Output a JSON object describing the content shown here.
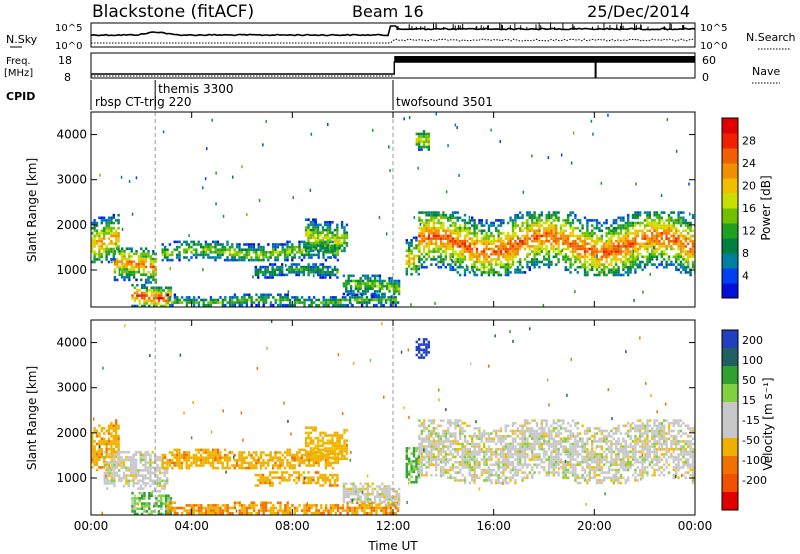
{
  "header": {
    "station": "Blackstone (fitACF)",
    "beam": "Beam 16",
    "date": "25/Dec/2014"
  },
  "top_panels": {
    "nsky_label": "N.Sky",
    "nsearch_label": "N.Search",
    "noise_tick_high": "10^5",
    "noise_tick_low": "10^0",
    "freq_label_line1": "Freq.",
    "freq_label_line2": "[MHz]",
    "freq_ticks": [
      "18",
      "8"
    ],
    "nave_label": "Nave",
    "nave_ticks": [
      "60",
      "0"
    ],
    "cpid_label": "CPID",
    "cpid_segments": [
      {
        "label": "rbsp CT-trig 220",
        "start_hour": 0.0
      },
      {
        "label": "themis 3300",
        "start_hour": 2.55
      },
      {
        "label": "twofsound 3501",
        "start_hour": 12.0
      }
    ]
  },
  "chart_data": [
    {
      "type": "heatmap",
      "name": "power",
      "xlabel": "",
      "ylabel": "Slant Range [km]",
      "xlim": [
        0,
        24
      ],
      "ylim": [
        180,
        4500
      ],
      "yticks": [
        1000,
        2000,
        3000,
        4000
      ],
      "colorbar": {
        "label": "Power [dB]",
        "ticks": [
          "28",
          "24",
          "20",
          "16",
          "12",
          "8",
          "4"
        ],
        "tick_values": [
          28,
          24,
          20,
          16,
          12,
          8,
          4
        ],
        "range": [
          0,
          32
        ],
        "colors": [
          "#0010d8",
          "#0040f0",
          "#0080a0",
          "#008040",
          "#20a020",
          "#70c000",
          "#c8e000",
          "#f0c000",
          "#f09000",
          "#f06000",
          "#f02000",
          "#e00000"
        ]
      },
      "bands": [
        {
          "t0": 0.0,
          "t1": 1.1,
          "r0": 1150,
          "r1": 2300,
          "peak": 22
        },
        {
          "t0": 0.9,
          "t1": 2.6,
          "r0": 700,
          "r1": 1500,
          "peak": 24
        },
        {
          "t0": 1.6,
          "t1": 3.2,
          "r0": 190,
          "r1": 750,
          "peak": 28
        },
        {
          "t0": 2.8,
          "t1": 9.8,
          "r0": 1200,
          "r1": 1650,
          "peak": 16
        },
        {
          "t0": 6.5,
          "t1": 9.8,
          "r0": 850,
          "r1": 1150,
          "peak": 12
        },
        {
          "t0": 8.5,
          "t1": 10.2,
          "r0": 1400,
          "r1": 2200,
          "peak": 18
        },
        {
          "t0": 3.0,
          "t1": 12.2,
          "r0": 190,
          "r1": 480,
          "peak": 14
        },
        {
          "t0": 10.0,
          "t1": 12.2,
          "r0": 400,
          "r1": 900,
          "peak": 16
        },
        {
          "t0": 12.5,
          "t1": 13.0,
          "r0": 900,
          "r1": 1800,
          "peak": 22
        },
        {
          "t0": 13.0,
          "t1": 24.0,
          "r0": 900,
          "r1": 2300,
          "peak": 26
        },
        {
          "t0": 12.9,
          "t1": 13.4,
          "r0": 3600,
          "r1": 4100,
          "peak": 20
        }
      ]
    },
    {
      "type": "heatmap",
      "name": "velocity",
      "xlabel": "Time UT",
      "ylabel": "Slant Range [km]",
      "xlim": [
        0,
        24
      ],
      "xticks": [
        "00:00",
        "04:00",
        "08:00",
        "12:00",
        "16:00",
        "20:00",
        "00:00"
      ],
      "xtick_hours": [
        0,
        4,
        8,
        12,
        16,
        20,
        24
      ],
      "ylim": [
        180,
        4500
      ],
      "yticks": [
        1000,
        2000,
        3000,
        4000
      ],
      "colorbar": {
        "label": "Velocity [m s⁻¹]",
        "ticks": [
          "200",
          "100",
          "50",
          "15",
          "-15",
          "-50",
          "-100",
          "-200"
        ],
        "tick_values": [
          200,
          100,
          50,
          15,
          -15,
          -50,
          -100,
          -200
        ],
        "range": [
          -250,
          250
        ],
        "colors": [
          "#2040c0",
          "#206060",
          "#30a030",
          "#80d040",
          "#c8c8c8",
          "#c8c8c8",
          "#f0b000",
          "#f08000",
          "#f05000",
          "#e00000"
        ]
      },
      "bands": [
        {
          "t0": 0.0,
          "t1": 1.1,
          "r0": 1150,
          "r1": 2300,
          "v": -60
        },
        {
          "t0": 0.5,
          "t1": 3.0,
          "r0": 700,
          "r1": 1600,
          "v": 0
        },
        {
          "t0": 1.6,
          "t1": 3.2,
          "r0": 190,
          "r1": 750,
          "v": 30
        },
        {
          "t0": 2.8,
          "t1": 9.8,
          "r0": 1200,
          "r1": 1650,
          "v": -60
        },
        {
          "t0": 6.5,
          "t1": 9.8,
          "r0": 850,
          "r1": 1150,
          "v": -60
        },
        {
          "t0": 8.5,
          "t1": 10.2,
          "r0": 1400,
          "r1": 2200,
          "v": -40
        },
        {
          "t0": 3.0,
          "t1": 12.2,
          "r0": 190,
          "r1": 480,
          "v": -70
        },
        {
          "t0": 10.0,
          "t1": 12.2,
          "r0": 400,
          "r1": 900,
          "v": 0
        },
        {
          "t0": 12.5,
          "t1": 13.0,
          "r0": 900,
          "r1": 1800,
          "v": 40
        },
        {
          "t0": 13.0,
          "t1": 24.0,
          "r0": 900,
          "r1": 2300,
          "v": 0
        },
        {
          "t0": 12.9,
          "t1": 13.4,
          "r0": 3600,
          "r1": 4100,
          "v": 220
        }
      ]
    }
  ]
}
